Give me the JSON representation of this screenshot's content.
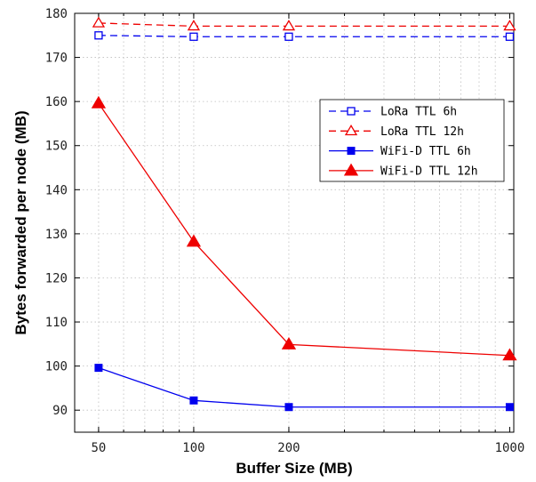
{
  "chart_data": {
    "type": "line",
    "xlabel": "Buffer Size (MB)",
    "ylabel": "Bytes forwarded per node (MB)",
    "xscale": "log",
    "xlim": [
      42,
      1030
    ],
    "ylim": [
      85,
      180
    ],
    "xticks": [
      50,
      100,
      200,
      1000
    ],
    "yticks": [
      90,
      100,
      110,
      120,
      130,
      140,
      150,
      160,
      170,
      180
    ],
    "grid": true,
    "legend_position": "right",
    "x": [
      50,
      100,
      200,
      1000
    ],
    "series": [
      {
        "name": "LoRa TTL 6h",
        "values": [
          175.0,
          174.7,
          174.7,
          174.7
        ],
        "color": "#0000ee",
        "line_style": "dashed",
        "marker": "square-open"
      },
      {
        "name": "LoRa TTL 12h",
        "values": [
          177.8,
          177.1,
          177.1,
          177.1
        ],
        "color": "#ee0000",
        "line_style": "dashed",
        "marker": "triangle-open"
      },
      {
        "name": "WiFi-D TTL 6h",
        "values": [
          99.6,
          92.2,
          90.7,
          90.7
        ],
        "color": "#0000ee",
        "line_style": "solid",
        "marker": "square-filled"
      },
      {
        "name": "WiFi-D TTL 12h",
        "values": [
          159.6,
          128.2,
          104.9,
          102.4
        ],
        "color": "#ee0000",
        "line_style": "solid",
        "marker": "triangle-filled"
      }
    ]
  }
}
